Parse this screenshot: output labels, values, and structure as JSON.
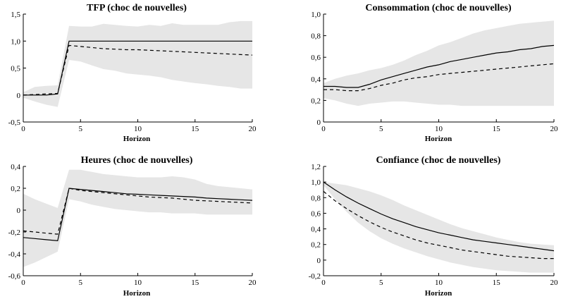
{
  "chart_data": [
    {
      "type": "line",
      "title": "TFP (choc de nouvelles)",
      "xlabel": "Horizon",
      "ylabel": "",
      "xlim": [
        0,
        20
      ],
      "ylim": [
        -0.5,
        1.5
      ],
      "xticks": [
        0,
        5,
        10,
        15,
        20
      ],
      "yticks": [
        -0.5,
        0,
        0.5,
        1.0,
        1.5
      ],
      "ytick_labels": [
        "-0,5",
        "0",
        "0,5",
        "1,0",
        "1,5"
      ],
      "x": [
        0,
        1,
        2,
        3,
        4,
        5,
        6,
        7,
        8,
        9,
        10,
        11,
        12,
        13,
        14,
        15,
        16,
        17,
        18,
        19,
        20
      ],
      "band_upper": [
        0.05,
        0.15,
        0.17,
        0.18,
        1.28,
        1.27,
        1.27,
        1.32,
        1.3,
        1.28,
        1.27,
        1.3,
        1.28,
        1.33,
        1.3,
        1.3,
        1.3,
        1.3,
        1.35,
        1.37,
        1.37
      ],
      "band_lower": [
        -0.05,
        -0.12,
        -0.18,
        -0.22,
        0.65,
        0.62,
        0.55,
        0.48,
        0.45,
        0.4,
        0.38,
        0.36,
        0.33,
        0.28,
        0.25,
        0.22,
        0.2,
        0.17,
        0.15,
        0.12,
        0.12
      ],
      "series": [
        {
          "style": "solid",
          "values": [
            0,
            0,
            0,
            0.02,
            1.0,
            1.0,
            1.0,
            1.0,
            1.0,
            1.0,
            1.0,
            1.0,
            1.0,
            1.0,
            1.0,
            1.0,
            1.0,
            1.0,
            1.0,
            1.0,
            1.0
          ]
        },
        {
          "style": "dashed",
          "values": [
            0,
            0.01,
            0.02,
            0.03,
            0.92,
            0.9,
            0.88,
            0.86,
            0.85,
            0.84,
            0.84,
            0.83,
            0.82,
            0.81,
            0.8,
            0.79,
            0.78,
            0.77,
            0.76,
            0.75,
            0.74
          ]
        }
      ],
      "band_color": "#e6e6e6",
      "grid": false
    },
    {
      "type": "line",
      "title": "Consommation (choc de nouvelles)",
      "xlabel": "Horizon",
      "ylabel": "",
      "xlim": [
        0,
        20
      ],
      "ylim": [
        0,
        1.0
      ],
      "xticks": [
        0,
        5,
        10,
        15,
        20
      ],
      "yticks": [
        0,
        0.2,
        0.4,
        0.6,
        0.8,
        1.0
      ],
      "ytick_labels": [
        "0",
        "0,2",
        "0,4",
        "0,6",
        "0,8",
        "1,0"
      ],
      "x": [
        0,
        1,
        2,
        3,
        4,
        5,
        6,
        7,
        8,
        9,
        10,
        11,
        12,
        13,
        14,
        15,
        16,
        17,
        18,
        19,
        20
      ],
      "band_upper": [
        0.36,
        0.4,
        0.43,
        0.45,
        0.48,
        0.5,
        0.53,
        0.57,
        0.62,
        0.66,
        0.71,
        0.74,
        0.78,
        0.82,
        0.85,
        0.87,
        0.89,
        0.91,
        0.92,
        0.93,
        0.94
      ],
      "band_lower": [
        0.22,
        0.2,
        0.17,
        0.15,
        0.17,
        0.18,
        0.19,
        0.19,
        0.18,
        0.17,
        0.16,
        0.16,
        0.15,
        0.15,
        0.15,
        0.15,
        0.15,
        0.15,
        0.15,
        0.15,
        0.15
      ],
      "series": [
        {
          "style": "solid",
          "values": [
            0.33,
            0.33,
            0.32,
            0.32,
            0.35,
            0.39,
            0.42,
            0.45,
            0.48,
            0.51,
            0.53,
            0.56,
            0.58,
            0.6,
            0.62,
            0.64,
            0.65,
            0.67,
            0.68,
            0.7,
            0.71
          ]
        },
        {
          "style": "dashed",
          "values": [
            0.3,
            0.3,
            0.29,
            0.29,
            0.31,
            0.34,
            0.36,
            0.39,
            0.41,
            0.42,
            0.44,
            0.45,
            0.46,
            0.47,
            0.48,
            0.49,
            0.5,
            0.51,
            0.52,
            0.53,
            0.54
          ]
        }
      ],
      "band_color": "#e6e6e6",
      "grid": false
    },
    {
      "type": "line",
      "title": "Heures (choc de nouvelles)",
      "xlabel": "Horizon",
      "ylabel": "",
      "xlim": [
        0,
        20
      ],
      "ylim": [
        -0.6,
        0.4
      ],
      "xticks": [
        0,
        5,
        10,
        15,
        20
      ],
      "yticks": [
        -0.6,
        -0.4,
        -0.2,
        0,
        0.2,
        0.4
      ],
      "ytick_labels": [
        "-0,6",
        "-0,4",
        "-0,2",
        "0",
        "0,2",
        "0,4"
      ],
      "x": [
        0,
        1,
        2,
        3,
        4,
        5,
        6,
        7,
        8,
        9,
        10,
        11,
        12,
        13,
        14,
        15,
        16,
        17,
        18,
        19,
        20
      ],
      "band_upper": [
        0.15,
        0.1,
        0.06,
        0.02,
        0.37,
        0.37,
        0.35,
        0.33,
        0.32,
        0.31,
        0.3,
        0.3,
        0.3,
        0.31,
        0.3,
        0.28,
        0.24,
        0.22,
        0.21,
        0.2,
        0.19
      ],
      "band_lower": [
        -0.52,
        -0.48,
        -0.43,
        -0.38,
        0.1,
        0.08,
        0.05,
        0.03,
        0.01,
        0.0,
        -0.01,
        -0.02,
        -0.02,
        -0.03,
        -0.03,
        -0.03,
        -0.04,
        -0.04,
        -0.04,
        -0.04,
        -0.04
      ],
      "series": [
        {
          "style": "solid",
          "values": [
            -0.25,
            -0.26,
            -0.27,
            -0.28,
            0.2,
            0.19,
            0.18,
            0.17,
            0.16,
            0.15,
            0.145,
            0.14,
            0.135,
            0.13,
            0.125,
            0.12,
            0.11,
            0.105,
            0.1,
            0.095,
            0.09
          ]
        },
        {
          "style": "dashed",
          "values": [
            -0.19,
            -0.2,
            -0.21,
            -0.22,
            0.2,
            0.18,
            0.17,
            0.16,
            0.15,
            0.14,
            0.13,
            0.12,
            0.115,
            0.11,
            0.1,
            0.09,
            0.085,
            0.08,
            0.075,
            0.07,
            0.065
          ]
        }
      ],
      "band_color": "#e6e6e6",
      "grid": false
    },
    {
      "type": "line",
      "title": "Confiance (choc de nouvelles)",
      "xlabel": "Horizon",
      "ylabel": "",
      "xlim": [
        0,
        20
      ],
      "ylim": [
        -0.2,
        1.2
      ],
      "xticks": [
        0,
        5,
        10,
        15,
        20
      ],
      "yticks": [
        -0.2,
        0,
        0.2,
        0.4,
        0.6,
        0.8,
        1.0,
        1.2
      ],
      "ytick_labels": [
        "-0,2",
        "0",
        "0,2",
        "0,4",
        "0,6",
        "0,8",
        "1,0",
        "1,2"
      ],
      "x": [
        0,
        1,
        2,
        3,
        4,
        5,
        6,
        7,
        8,
        9,
        10,
        11,
        12,
        13,
        14,
        15,
        16,
        17,
        18,
        19,
        20
      ],
      "band_upper": [
        1.0,
        0.98,
        0.96,
        0.92,
        0.88,
        0.83,
        0.77,
        0.7,
        0.64,
        0.58,
        0.52,
        0.46,
        0.41,
        0.37,
        0.33,
        0.29,
        0.26,
        0.23,
        0.21,
        0.2,
        0.19
      ],
      "band_lower": [
        0.96,
        0.78,
        0.62,
        0.48,
        0.37,
        0.28,
        0.21,
        0.15,
        0.1,
        0.05,
        0.01,
        -0.03,
        -0.06,
        -0.09,
        -0.11,
        -0.13,
        -0.14,
        -0.15,
        -0.16,
        -0.16,
        -0.16
      ],
      "series": [
        {
          "style": "solid",
          "values": [
            1.0,
            0.9,
            0.81,
            0.73,
            0.66,
            0.59,
            0.53,
            0.48,
            0.43,
            0.39,
            0.35,
            0.32,
            0.29,
            0.26,
            0.24,
            0.22,
            0.2,
            0.18,
            0.16,
            0.14,
            0.12
          ]
        },
        {
          "style": "dashed",
          "values": [
            0.88,
            0.76,
            0.66,
            0.57,
            0.49,
            0.42,
            0.36,
            0.31,
            0.26,
            0.22,
            0.19,
            0.16,
            0.13,
            0.11,
            0.09,
            0.07,
            0.05,
            0.04,
            0.03,
            0.02,
            0.02
          ]
        }
      ],
      "band_color": "#e6e6e6",
      "grid": false
    }
  ]
}
